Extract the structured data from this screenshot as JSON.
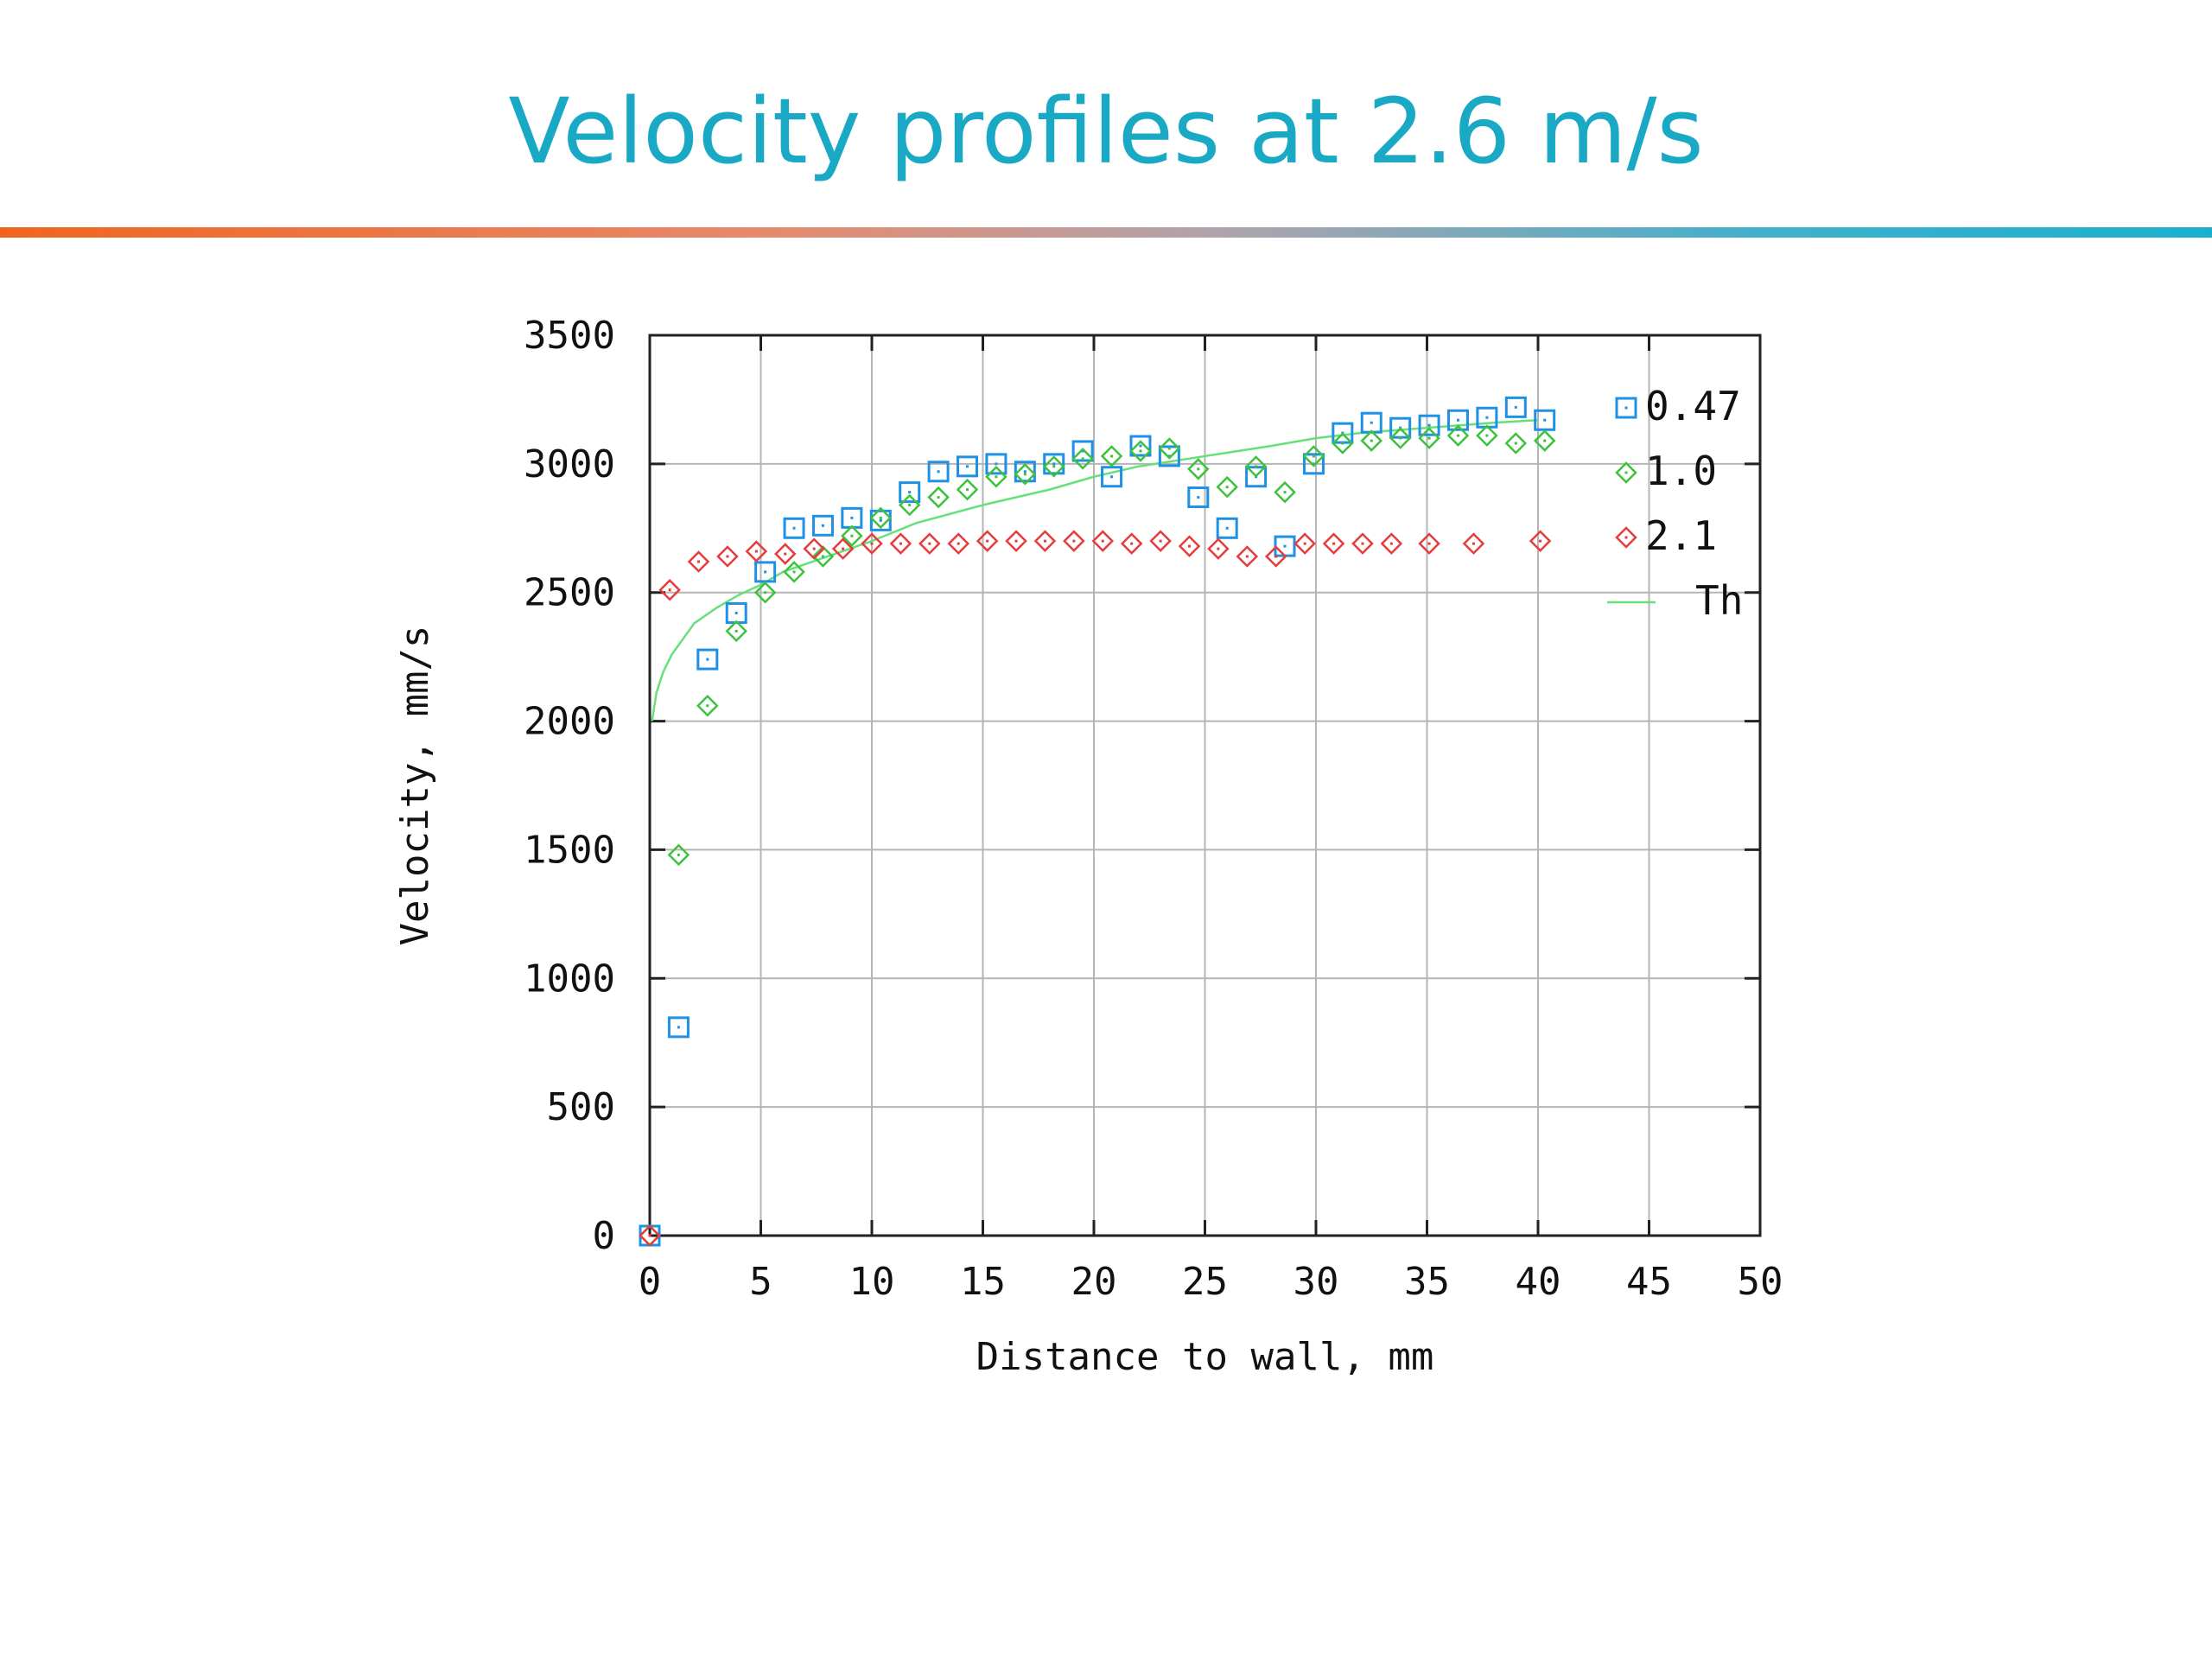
{
  "slide": {
    "title": "Velocity profiles at 2.6 m/s"
  },
  "colors": {
    "series_047": "#1e90e6",
    "series_10": "#3ec23e",
    "series_21": "#e63c3c",
    "theory": "#66e07a",
    "title": "#1aa9c4"
  },
  "chart_data": {
    "type": "scatter",
    "title": "",
    "xlabel": "Distance to wall, mm",
    "ylabel": "Velocity, mm/s",
    "xlim": [
      0,
      50
    ],
    "ylim": [
      0,
      3500
    ],
    "xticks": [
      "0",
      "5",
      "10",
      "15",
      "20",
      "25",
      "30",
      "35",
      "40",
      "45",
      "50"
    ],
    "yticks": [
      "0",
      "500",
      "1000",
      "1500",
      "2000",
      "2500",
      "3000",
      "3500"
    ],
    "grid": true,
    "legend_position": "right-top",
    "series": [
      {
        "name": "0.47",
        "marker": "square",
        "color": "#1e90e6",
        "x": [
          0,
          1.3,
          2.6,
          3.9,
          5.2,
          6.5,
          7.8,
          9.1,
          10.4,
          11.7,
          13,
          14.3,
          15.6,
          16.9,
          18.2,
          19.5,
          20.8,
          22.1,
          23.4,
          24.7,
          26,
          27.3,
          28.6,
          29.9,
          31.2,
          32.5,
          33.8,
          35.1,
          36.4,
          37.7,
          39,
          40.3
        ],
        "y": [
          0,
          810,
          2240,
          2420,
          2580,
          2750,
          2760,
          2790,
          2780,
          2890,
          2970,
          2990,
          3000,
          2970,
          3000,
          3050,
          2950,
          3070,
          3030,
          2870,
          2750,
          2950,
          2680,
          3000,
          3120,
          3160,
          3140,
          3150,
          3170,
          3180,
          3220,
          3170
        ]
      },
      {
        "name": "1.0",
        "marker": "diamond",
        "color": "#3ec23e",
        "x": [
          0,
          1.3,
          2.6,
          3.9,
          5.2,
          6.5,
          7.8,
          9.1,
          10.4,
          11.7,
          13,
          14.3,
          15.6,
          16.9,
          18.2,
          19.5,
          20.8,
          22.1,
          23.4,
          24.7,
          26,
          27.3,
          28.6,
          29.9,
          31.2,
          32.5,
          33.8,
          35.1,
          36.4,
          37.7,
          39,
          40.3
        ],
        "y": [
          0,
          1480,
          2060,
          2350,
          2500,
          2580,
          2640,
          2720,
          2790,
          2840,
          2870,
          2900,
          2950,
          2960,
          2990,
          3020,
          3030,
          3050,
          3060,
          2980,
          2910,
          2990,
          2890,
          3030,
          3080,
          3090,
          3100,
          3100,
          3110,
          3110,
          3080,
          3090
        ]
      },
      {
        "name": "2.1",
        "marker": "diamond",
        "color": "#e63c3c",
        "x": [
          0,
          0.9,
          2.2,
          3.5,
          4.8,
          6.1,
          7.4,
          8.7,
          10,
          11.3,
          12.6,
          13.9,
          15.2,
          16.5,
          17.8,
          19.1,
          20.4,
          21.7,
          23,
          24.3,
          25.6,
          26.9,
          28.2,
          29.5,
          30.8,
          32.1,
          33.4,
          35.1,
          37.1,
          40.1
        ],
        "y": [
          0,
          2510,
          2620,
          2640,
          2660,
          2650,
          2670,
          2670,
          2690,
          2690,
          2690,
          2690,
          2700,
          2700,
          2700,
          2700,
          2700,
          2690,
          2700,
          2680,
          2670,
          2640,
          2640,
          2690,
          2690,
          2690,
          2690,
          2690,
          2690,
          2700
        ]
      },
      {
        "name": "Th",
        "marker": "line",
        "color": "#66e07a",
        "x": [
          0.1,
          0.3,
          0.6,
          1,
          1.5,
          2,
          3,
          4,
          5,
          6,
          8,
          10,
          12,
          15,
          18,
          20,
          22,
          25,
          28,
          30,
          32,
          35,
          38,
          40
        ],
        "y": [
          2000,
          2110,
          2190,
          2260,
          2320,
          2380,
          2440,
          2490,
          2530,
          2580,
          2640,
          2700,
          2770,
          2840,
          2900,
          2950,
          2990,
          3030,
          3070,
          3100,
          3120,
          3140,
          3160,
          3170
        ]
      }
    ]
  }
}
